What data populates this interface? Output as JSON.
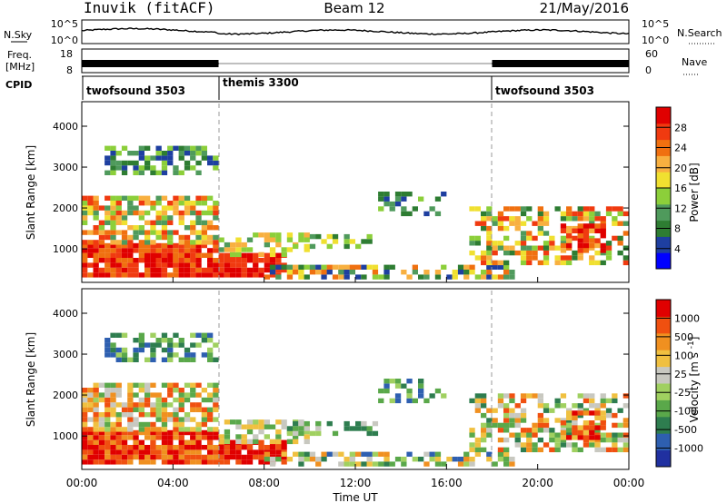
{
  "header": {
    "station": "Inuvik (fitACF)",
    "beam": "Beam 12",
    "date": "21/May/2016"
  },
  "top_panels": {
    "nsky": {
      "left_label": "N.Sky",
      "left_ticks": [
        "10^5",
        "10^0"
      ],
      "right_label": "N.Search",
      "right_ticks": [
        "10^5",
        "10^0"
      ]
    },
    "freq": {
      "left_label_line1": "Freq.",
      "left_label_line2": "[MHz]",
      "left_ticks": [
        "18",
        "8"
      ],
      "right_label": "Nave",
      "right_ticks": [
        "60",
        "0"
      ]
    },
    "cpid": {
      "label": "CPID",
      "segments": [
        {
          "name": "twofsound 3503",
          "start_hour": 0
        },
        {
          "name": "themis 3300",
          "start_hour": 6
        },
        {
          "name": "twofsound 3503",
          "start_hour": 18
        }
      ]
    }
  },
  "chart_data": [
    {
      "type": "heatmap",
      "title": "",
      "ylabel": "Slant Range [km]",
      "xlabel": "",
      "x_range_hours": [
        0,
        24
      ],
      "ylim": [
        180,
        4600
      ],
      "y_ticks": [
        1000,
        2000,
        3000,
        4000
      ],
      "colorbar": {
        "label": "Power [dB]",
        "tick_labels": [
          "28",
          "24",
          "20",
          "16",
          "12",
          "8",
          "4"
        ],
        "colors": [
          "#0000ff",
          "#1e3fa0",
          "#2e7d32",
          "#4f9a5c",
          "#8ccf3a",
          "#f0e030",
          "#f8b040",
          "#f07010",
          "#f03a10",
          "#e00000"
        ]
      },
      "dashed_vlines_hours": [
        6,
        18
      ]
    },
    {
      "type": "heatmap",
      "title": "",
      "ylabel": "Slant Range [km]",
      "xlabel": "Time UT",
      "x_range_hours": [
        0,
        24
      ],
      "x_tick_labels": [
        "00:00",
        "04:00",
        "08:00",
        "12:00",
        "16:00",
        "20:00",
        "00:00"
      ],
      "ylim": [
        180,
        4600
      ],
      "y_ticks": [
        1000,
        2000,
        3000,
        4000
      ],
      "colorbar": {
        "label": "Velocity [m s^-1]",
        "tick_labels": [
          "1000",
          "500",
          "100",
          "25",
          "-25",
          "-100",
          "-500",
          "-1000"
        ],
        "colors": [
          "#2030a0",
          "#2e5fb0",
          "#2e7d4f",
          "#5aa84a",
          "#a0d060",
          "#c8c8c0",
          "#f0c040",
          "#f09020",
          "#f05010",
          "#e00000"
        ]
      },
      "dashed_vlines_hours": [
        6,
        18
      ]
    }
  ]
}
